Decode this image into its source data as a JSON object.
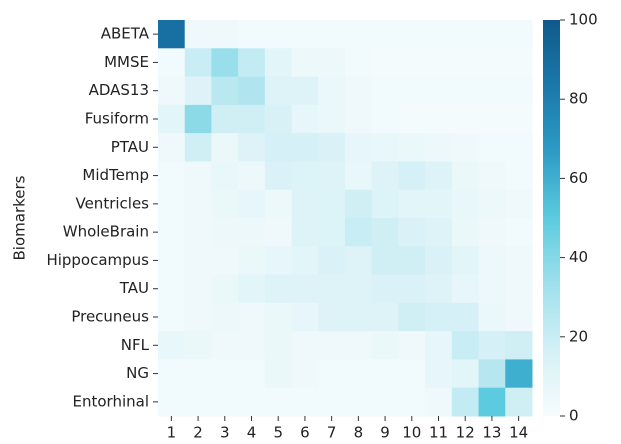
{
  "chart_data": {
    "type": "heatmap",
    "y_label": "Biomarkers",
    "x_categories": [
      "1",
      "2",
      "3",
      "4",
      "5",
      "6",
      "7",
      "8",
      "9",
      "10",
      "11",
      "12",
      "13",
      "14"
    ],
    "y_categories": [
      "ABETA",
      "MMSE",
      "ADAS13",
      "Fusiform",
      "PTAU",
      "MidTemp",
      "Ventricles",
      "WholeBrain",
      "Hippocampus",
      "TAU",
      "Precuneus",
      "NFL",
      "NG",
      "Entorhinal"
    ],
    "values": [
      [
        88,
        4,
        4,
        3,
        3,
        3,
        3,
        3,
        3,
        3,
        3,
        3,
        3,
        3
      ],
      [
        3,
        20,
        35,
        22,
        10,
        5,
        5,
        3,
        2,
        2,
        2,
        2,
        2,
        2
      ],
      [
        4,
        12,
        25,
        28,
        12,
        12,
        6,
        4,
        3,
        3,
        3,
        3,
        3,
        3
      ],
      [
        10,
        38,
        18,
        18,
        15,
        8,
        6,
        4,
        3,
        2,
        2,
        2,
        2,
        2
      ],
      [
        4,
        18,
        6,
        12,
        16,
        16,
        14,
        8,
        7,
        6,
        5,
        4,
        3,
        3
      ],
      [
        3,
        4,
        7,
        5,
        14,
        13,
        12,
        7,
        12,
        16,
        12,
        6,
        4,
        3
      ],
      [
        3,
        4,
        6,
        8,
        5,
        12,
        13,
        18,
        13,
        10,
        10,
        7,
        5,
        4
      ],
      [
        3,
        4,
        5,
        5,
        4,
        12,
        13,
        20,
        18,
        14,
        12,
        6,
        4,
        3
      ],
      [
        3,
        4,
        4,
        6,
        8,
        10,
        14,
        12,
        18,
        18,
        14,
        10,
        5,
        4
      ],
      [
        3,
        4,
        6,
        10,
        12,
        12,
        12,
        12,
        14,
        14,
        12,
        8,
        5,
        4
      ],
      [
        3,
        4,
        5,
        4,
        6,
        8,
        12,
        12,
        12,
        18,
        16,
        16,
        6,
        4
      ],
      [
        7,
        6,
        4,
        4,
        6,
        4,
        4,
        4,
        6,
        4,
        8,
        20,
        16,
        18
      ],
      [
        3,
        3,
        3,
        3,
        6,
        4,
        3,
        3,
        3,
        3,
        8,
        10,
        26,
        60
      ],
      [
        3,
        3,
        3,
        3,
        3,
        3,
        3,
        3,
        3,
        3,
        4,
        22,
        50,
        18
      ]
    ],
    "zlim": [
      0,
      100
    ],
    "zticks": [
      0,
      20,
      40,
      60,
      80,
      100
    ],
    "colors": [
      "#f7fcfd",
      "#d4f0f6",
      "#9fe0ec",
      "#5ccbdf",
      "#2c9cc6",
      "#1b78ab",
      "#0f5a8a"
    ]
  }
}
